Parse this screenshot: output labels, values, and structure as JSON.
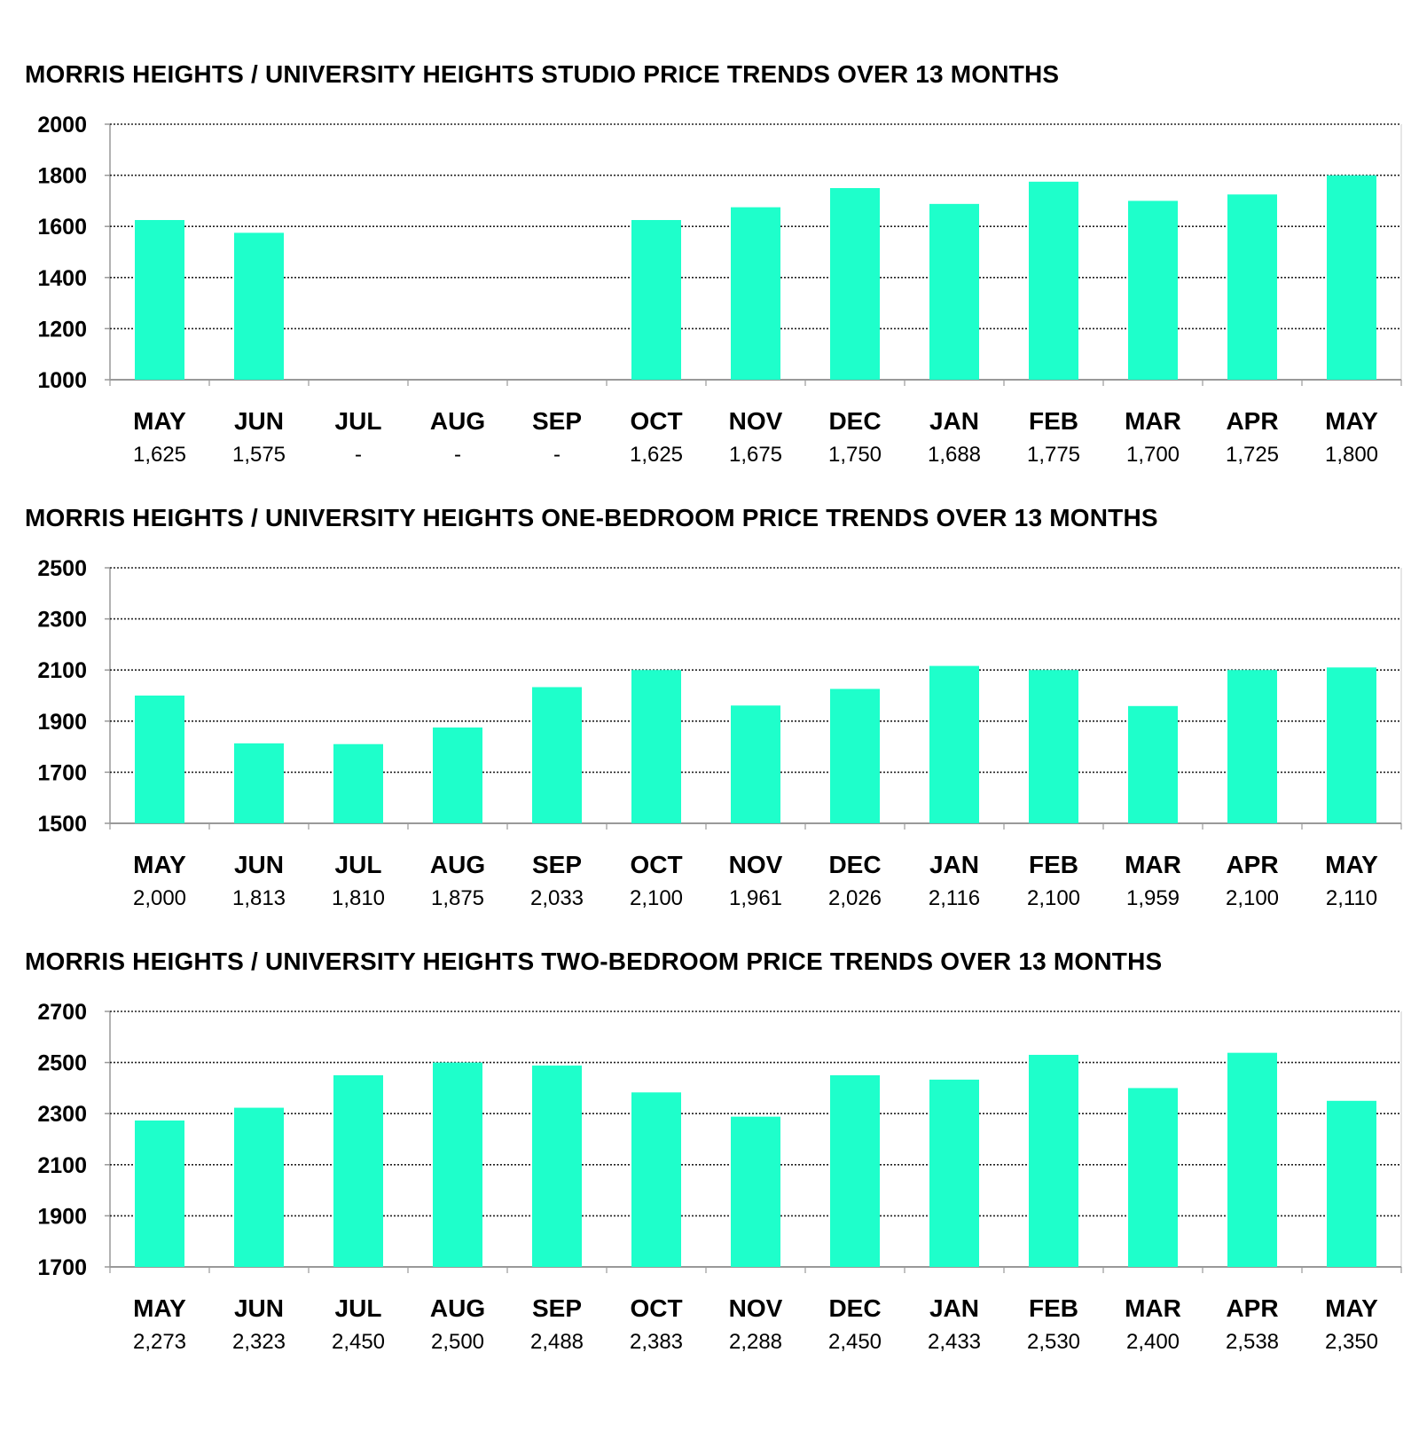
{
  "colors": {
    "bar": "#1effcb",
    "grid": "#222222",
    "axis": "#999999",
    "text": "#000000"
  },
  "chart_data": [
    {
      "type": "bar",
      "title": "MORRIS HEIGHTS / UNIVERSITY HEIGHTS STUDIO PRICE TRENDS OVER 13 MONTHS",
      "categories": [
        "MAY",
        "JUN",
        "JUL",
        "AUG",
        "SEP",
        "OCT",
        "NOV",
        "DEC",
        "JAN",
        "FEB",
        "MAR",
        "APR",
        "MAY"
      ],
      "values": [
        1625,
        1575,
        null,
        null,
        null,
        1625,
        1675,
        1750,
        1688,
        1775,
        1700,
        1725,
        1800
      ],
      "value_labels": [
        "1,625",
        "1,575",
        "-",
        "-",
        "-",
        "1,625",
        "1,675",
        "1,750",
        "1,688",
        "1,775",
        "1,700",
        "1,725",
        "1,800"
      ],
      "yticks": [
        "2000",
        "1800",
        "1600",
        "1400",
        "1200",
        "1000"
      ],
      "ylim": [
        1000,
        2000
      ],
      "grid": true
    },
    {
      "type": "bar",
      "title": "MORRIS HEIGHTS / UNIVERSITY HEIGHTS ONE-BEDROOM PRICE TRENDS OVER 13 MONTHS",
      "categories": [
        "MAY",
        "JUN",
        "JUL",
        "AUG",
        "SEP",
        "OCT",
        "NOV",
        "DEC",
        "JAN",
        "FEB",
        "MAR",
        "APR",
        "MAY"
      ],
      "values": [
        2000,
        1813,
        1810,
        1875,
        2033,
        2100,
        1961,
        2026,
        2116,
        2100,
        1959,
        2100,
        2110
      ],
      "value_labels": [
        "2,000",
        "1,813",
        "1,810",
        "1,875",
        "2,033",
        "2,100",
        "1,961",
        "2,026",
        "2,116",
        "2,100",
        "1,959",
        "2,100",
        "2,110"
      ],
      "yticks": [
        "2500",
        "2300",
        "2100",
        "1900",
        "1700",
        "1500"
      ],
      "ylim": [
        1500,
        2500
      ],
      "grid": true
    },
    {
      "type": "bar",
      "title": "MORRIS HEIGHTS / UNIVERSITY HEIGHTS TWO-BEDROOM PRICE TRENDS OVER 13 MONTHS",
      "categories": [
        "MAY",
        "JUN",
        "JUL",
        "AUG",
        "SEP",
        "OCT",
        "NOV",
        "DEC",
        "JAN",
        "FEB",
        "MAR",
        "APR",
        "MAY"
      ],
      "values": [
        2273,
        2323,
        2450,
        2500,
        2488,
        2383,
        2288,
        2450,
        2433,
        2530,
        2400,
        2538,
        2350
      ],
      "value_labels": [
        "2,273",
        "2,323",
        "2,450",
        "2,500",
        "2,488",
        "2,383",
        "2,288",
        "2,450",
        "2,433",
        "2,530",
        "2,400",
        "2,538",
        "2,350"
      ],
      "yticks": [
        "2700",
        "2500",
        "2300",
        "2100",
        "1900",
        "1700"
      ],
      "ylim": [
        1700,
        2700
      ],
      "grid": true
    }
  ]
}
